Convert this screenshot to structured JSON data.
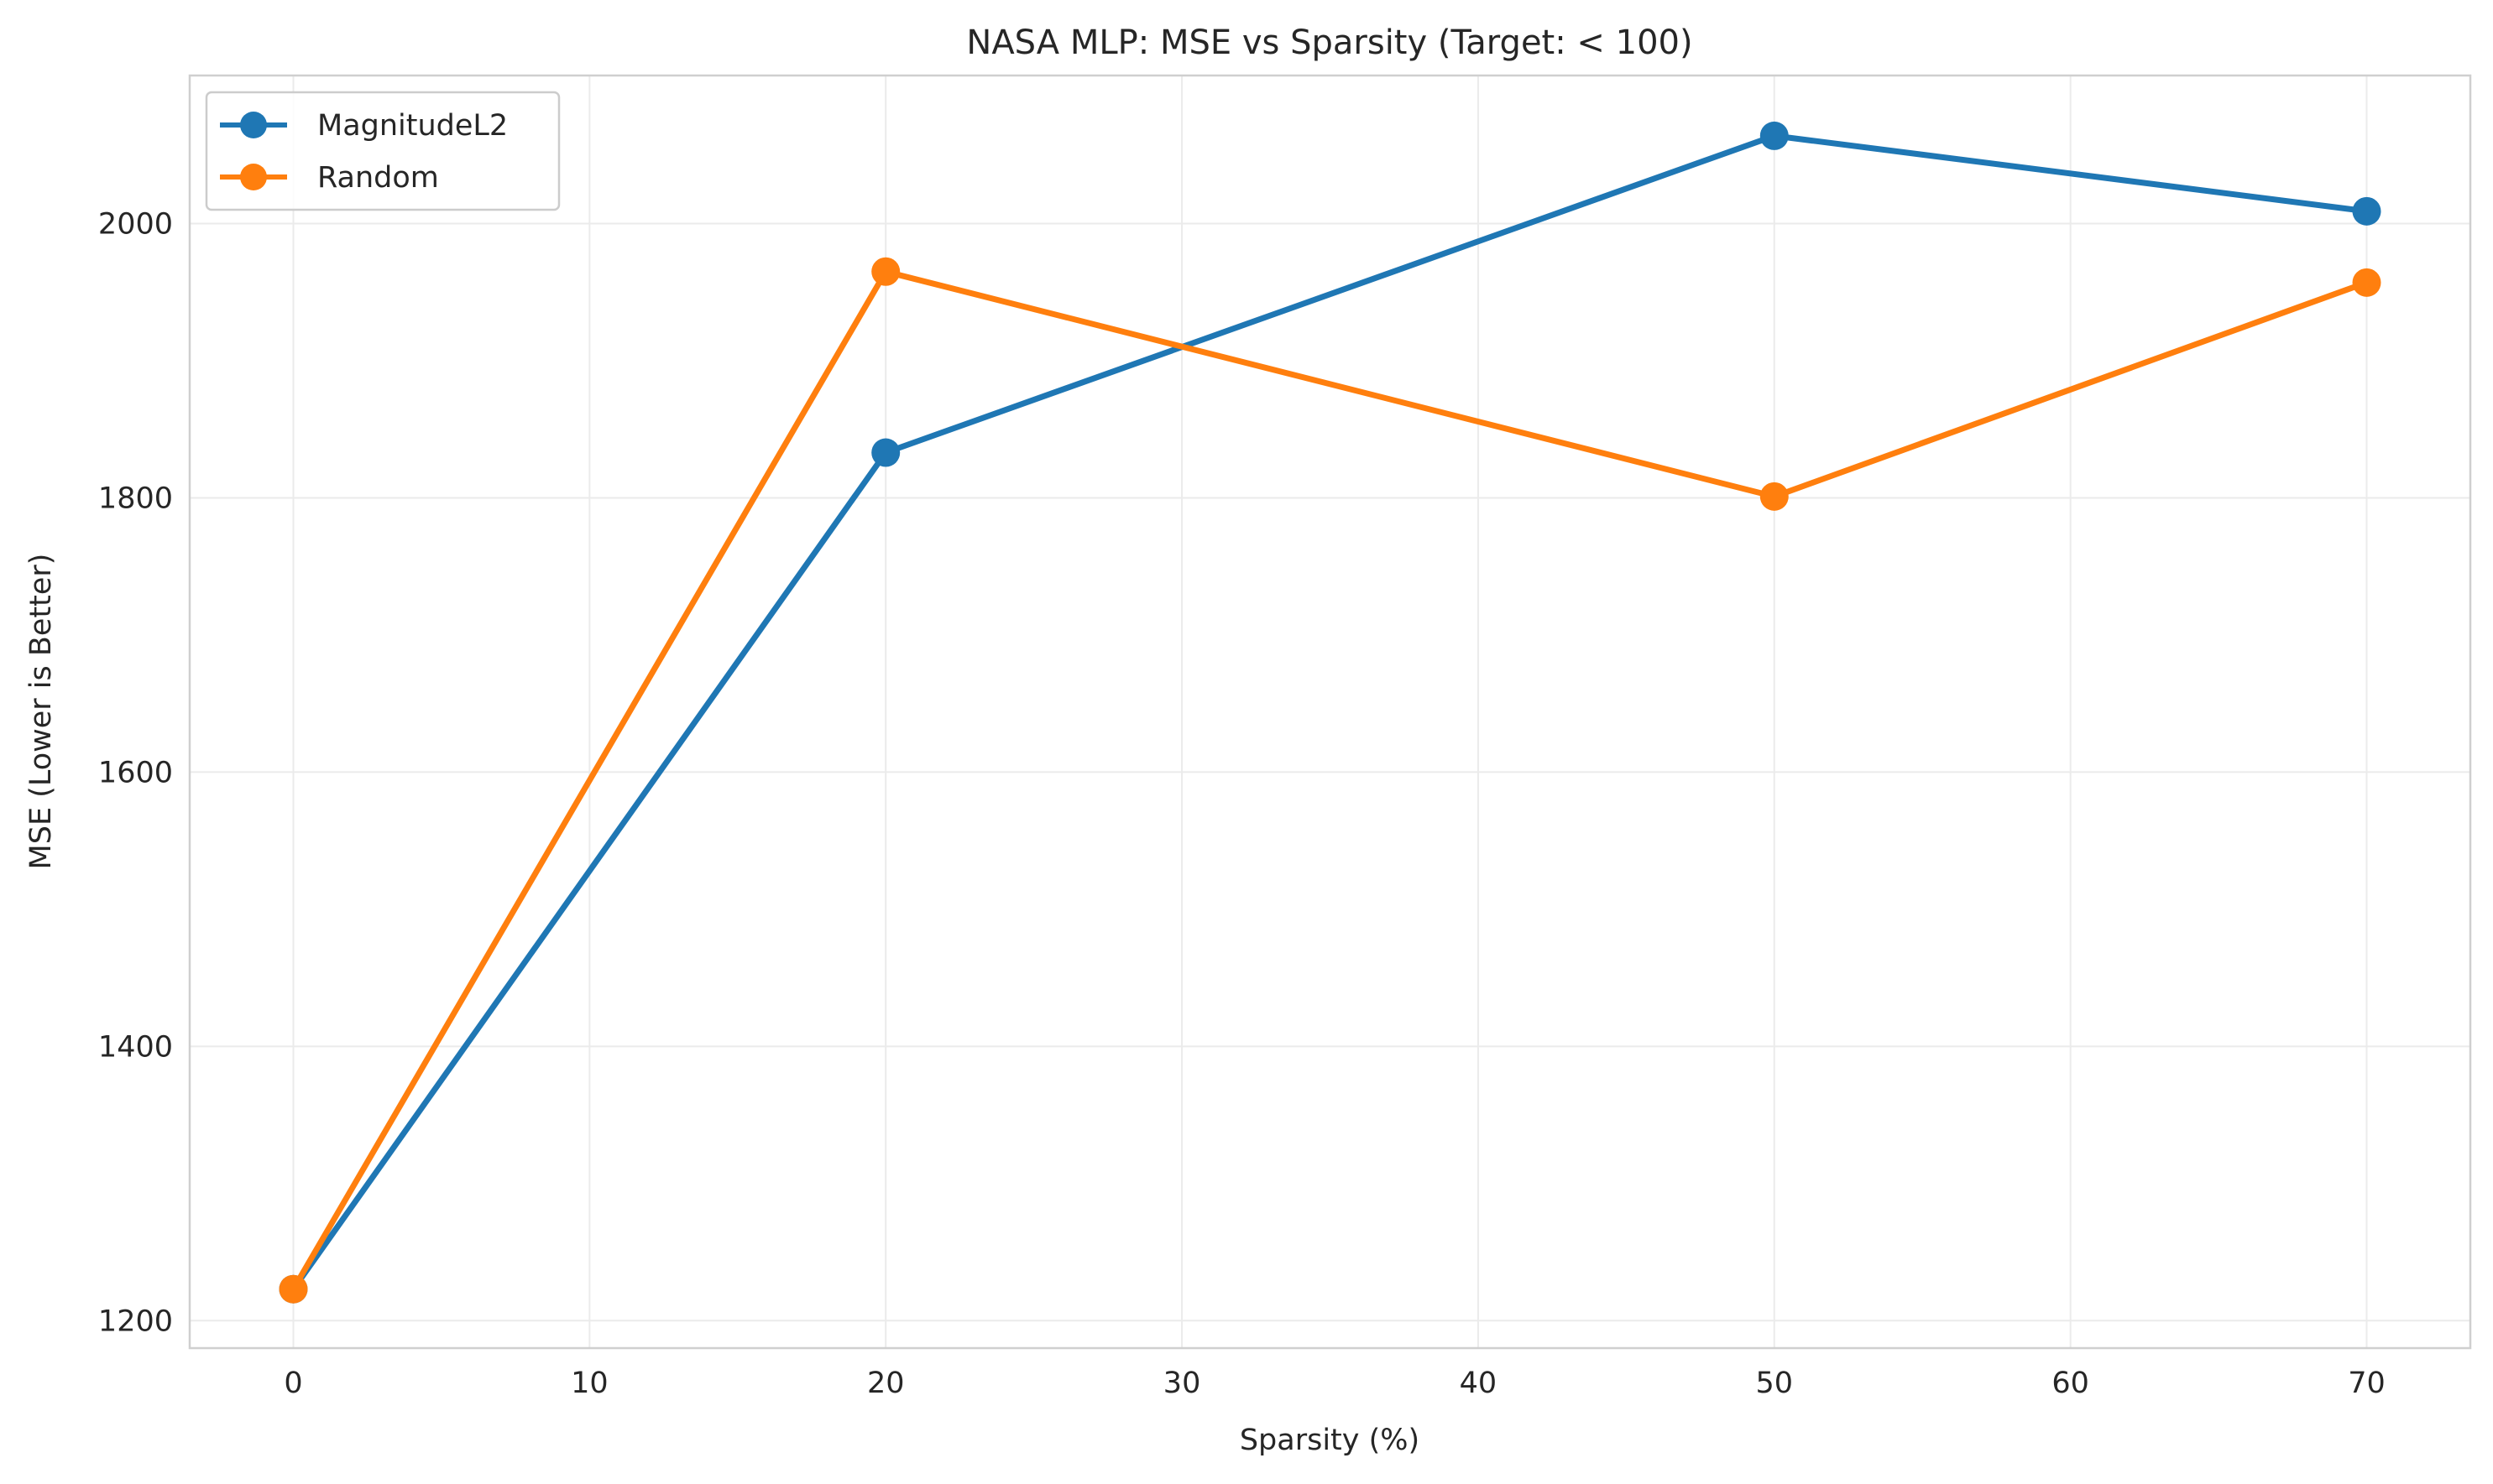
{
  "chart_data": {
    "type": "line",
    "title": "NASA MLP: MSE vs Sparsity (Target: < 100)",
    "xlabel": "Sparsity (%)",
    "ylabel": "MSE (Lower is Better)",
    "xlim": [
      -3.5,
      73.5
    ],
    "ylim": [
      1180,
      2108
    ],
    "xticks": [
      0,
      10,
      20,
      30,
      40,
      50,
      60,
      70
    ],
    "yticks": [
      1200,
      1400,
      1600,
      1800,
      2000
    ],
    "grid": true,
    "legend_position": "top-left",
    "series": [
      {
        "name": "MagnitudeL2",
        "color": "#1f77b4",
        "x": [
          0,
          20,
          50,
          70
        ],
        "y": [
          1223,
          1833,
          2064,
          2009
        ]
      },
      {
        "name": "Random",
        "color": "#ff7f0e",
        "x": [
          0,
          20,
          50,
          70
        ],
        "y": [
          1223,
          1965,
          1801,
          1957
        ]
      }
    ]
  }
}
